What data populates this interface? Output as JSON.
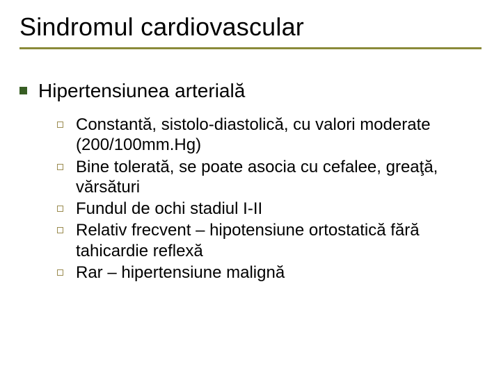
{
  "slide": {
    "title": "Sindromul cardiovascular",
    "rule_color": "#8a8a39",
    "bullet_fill_color": "#385e24",
    "bullet_outline_color": "#9a8b4f",
    "title_fontsize": 36,
    "heading_fontsize": 28,
    "body_fontsize": 24,
    "background_color": "#ffffff",
    "text_color": "#000000",
    "heading": "Hipertensiunea arterială",
    "items": [
      "Constantă, sistolo-diastolică, cu valori moderate (200/100mm.Hg)",
      "Bine tolerată, se poate asocia cu cefalee, greaţă, vărsături",
      "Fundul de ochi stadiul I-II",
      "Relativ frecvent – hipotensiune ortostatică fără tahicardie reflexă",
      "Rar – hipertensiune malignă"
    ]
  }
}
